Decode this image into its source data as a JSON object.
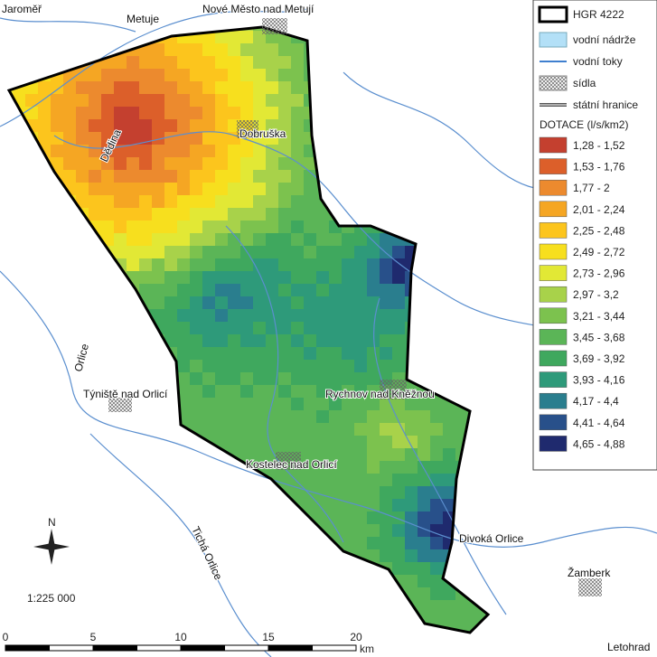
{
  "map": {
    "places": [
      "Jaroměř",
      "Metuje",
      "Nové Město nad Metují",
      "Dobruška",
      "Dědina",
      "Týniště nad Orlicí",
      "Orlice",
      "Rychnov nad Kněžnou",
      "Kostelec nad Orlicí",
      "Divoká Orlice",
      "Tichá Orlice",
      "Žamberk",
      "Letohrad"
    ],
    "north": "N",
    "scale": "1:225 000",
    "scale_bar": {
      "ticks": [
        "0",
        "5",
        "10",
        "15",
        "20"
      ],
      "unit": "km"
    }
  },
  "legend": {
    "items": [
      "HGR 4222",
      "vodní nádrže",
      "vodní toky",
      "sídla",
      "státní hranice"
    ],
    "title": "DOTACE (l/s/km2)",
    "classes": [
      {
        "label": "1,28 - 1,52",
        "color": "#c4402f"
      },
      {
        "label": "1,53 - 1,76",
        "color": "#dc5f2a"
      },
      {
        "label": "1,77 - 2",
        "color": "#ec8a2e"
      },
      {
        "label": "2,01 - 2,24",
        "color": "#f5a623"
      },
      {
        "label": "2,25 - 2,48",
        "color": "#fcc51d"
      },
      {
        "label": "2,49 - 2,72",
        "color": "#f7df1e"
      },
      {
        "label": "2,73 - 2,96",
        "color": "#e2e835"
      },
      {
        "label": "2,97 - 3,2",
        "color": "#a8d24a"
      },
      {
        "label": "3,21 - 3,44",
        "color": "#7cc24e"
      },
      {
        "label": "3,45 - 3,68",
        "color": "#5bb557"
      },
      {
        "label": "3,69 - 3,92",
        "color": "#3fa85e"
      },
      {
        "label": "3,93 - 4,16",
        "color": "#2e9a7a"
      },
      {
        "label": "4,17 - 4,4",
        "color": "#2a7e8e"
      },
      {
        "label": "4,41 - 4,64",
        "color": "#28508a"
      },
      {
        "label": "4,65 - 4,88",
        "color": "#1f2a6e"
      }
    ]
  }
}
